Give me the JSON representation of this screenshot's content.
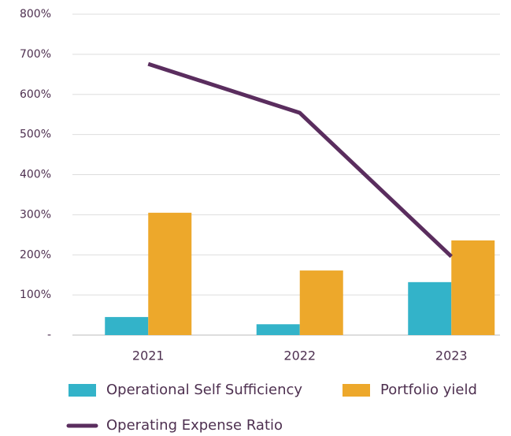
{
  "chart_data": {
    "type": "bar",
    "categories": [
      "2021",
      "2022",
      "2023"
    ],
    "series": [
      {
        "name": "Operational Self Sufficiency",
        "color": "#33b3c9",
        "values": [
          45,
          27,
          132
        ]
      },
      {
        "name": "Portfolio yield",
        "color": "#eda82b",
        "values": [
          305,
          161,
          236
        ]
      },
      {
        "name": "Operating Expense Ratio",
        "color": "#5a2d5e",
        "type": "line",
        "values": [
          676,
          554,
          196
        ]
      }
    ],
    "ylim": [
      0,
      800
    ],
    "yticks": [
      {
        "value": 0,
        "label": "-"
      },
      {
        "value": 100,
        "label": "100%"
      },
      {
        "value": 200,
        "label": "200%"
      },
      {
        "value": 300,
        "label": "300%"
      },
      {
        "value": 400,
        "label": "400%"
      },
      {
        "value": 500,
        "label": "500%"
      },
      {
        "value": 600,
        "label": "600%"
      },
      {
        "value": 700,
        "label": "700%"
      },
      {
        "value": 800,
        "label": "800%"
      }
    ],
    "grid": true
  }
}
